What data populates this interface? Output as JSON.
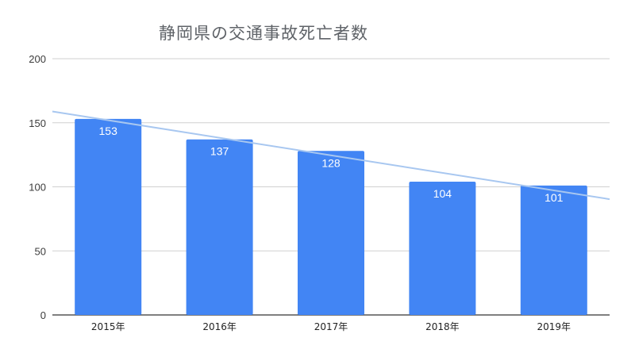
{
  "chart_data": {
    "type": "bar",
    "title": "静岡県の交通事故死亡者数",
    "xlabel": "",
    "ylabel": "",
    "categories": [
      "2015年",
      "2016年",
      "2017年",
      "2018年",
      "2019年"
    ],
    "values": [
      153,
      137,
      128,
      104,
      101
    ],
    "data_labels": [
      "153",
      "137",
      "128",
      "104",
      "101"
    ],
    "ylim": [
      0,
      200
    ],
    "yticks": [
      0,
      50,
      100,
      150,
      200
    ],
    "ytick_labels": [
      "0",
      "50",
      "100",
      "150",
      "200"
    ],
    "grid": true,
    "legend": "none",
    "bar_color": "#4285f4",
    "trendline": {
      "type": "linear",
      "color": "#a8c7f0"
    }
  }
}
